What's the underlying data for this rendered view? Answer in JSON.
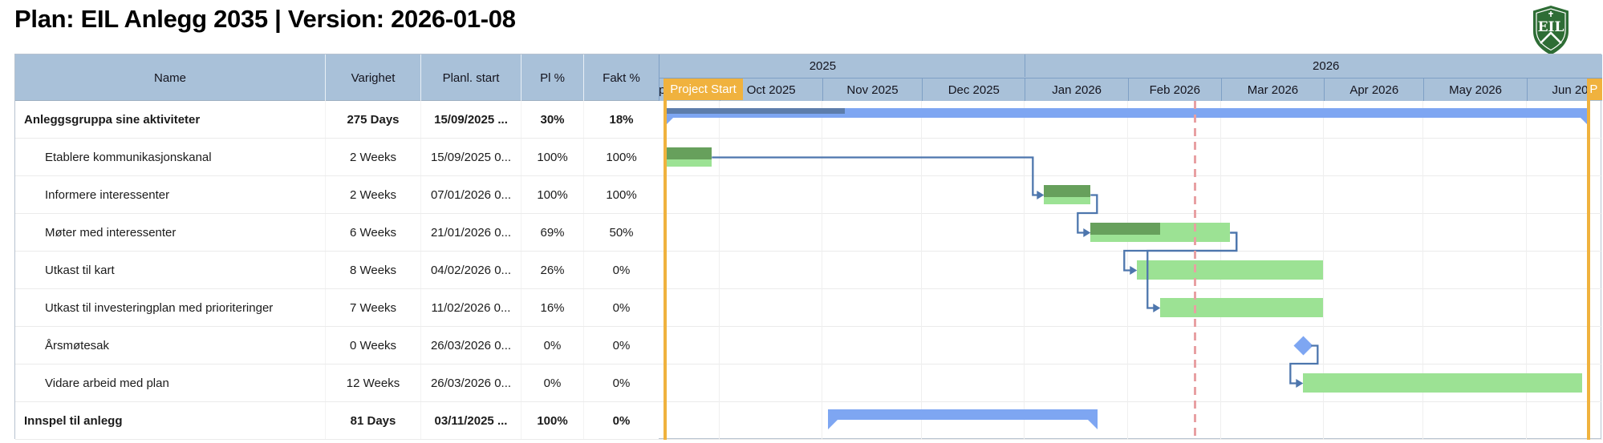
{
  "title": "Plan: EIL Anlegg 2035 | Version: 2026-01-08",
  "logo": {
    "monogram": "EIL",
    "shield_color": "#2e6d35"
  },
  "table": {
    "headers": {
      "name": "Name",
      "duration": "Varighet",
      "start": "Planl. start",
      "pl": "Pl %",
      "fakt": "Fakt %"
    },
    "rows": [
      {
        "name": "Anleggsgruppa sine aktiviteter",
        "duration": "275 Days",
        "start": "15/09/2025 ...",
        "pl": "30%",
        "fakt": "18%",
        "bold": true,
        "indent": 0
      },
      {
        "name": "Etablere kommunikasjonskanal",
        "duration": "2 Weeks",
        "start": "15/09/2025 0...",
        "pl": "100%",
        "fakt": "100%",
        "bold": false,
        "indent": 1
      },
      {
        "name": "Informere interessenter",
        "duration": "2 Weeks",
        "start": "07/01/2026 0...",
        "pl": "100%",
        "fakt": "100%",
        "bold": false,
        "indent": 1
      },
      {
        "name": "Møter med interessenter",
        "duration": "6 Weeks",
        "start": "21/01/2026 0...",
        "pl": "69%",
        "fakt": "50%",
        "bold": false,
        "indent": 1
      },
      {
        "name": "Utkast til kart",
        "duration": "8 Weeks",
        "start": "04/02/2026 0...",
        "pl": "26%",
        "fakt": "0%",
        "bold": false,
        "indent": 1
      },
      {
        "name": "Utkast til investeringplan med prioriteringer",
        "duration": "7 Weeks",
        "start": "11/02/2026 0...",
        "pl": "16%",
        "fakt": "0%",
        "bold": false,
        "indent": 1
      },
      {
        "name": "Årsmøtesak",
        "duration": "0 Weeks",
        "start": "26/03/2026 0...",
        "pl": "0%",
        "fakt": "0%",
        "bold": false,
        "indent": 1
      },
      {
        "name": "Vidare arbeid med plan",
        "duration": "12 Weeks",
        "start": "26/03/2026 0...",
        "pl": "0%",
        "fakt": "0%",
        "bold": false,
        "indent": 1
      },
      {
        "name": "Innspel til anlegg",
        "duration": "81 Days",
        "start": "03/11/2025 ...",
        "pl": "100%",
        "fakt": "0%",
        "bold": true,
        "indent": 0
      }
    ]
  },
  "chart_data": {
    "type": "gantt",
    "timeline": {
      "start": "2025-09-13",
      "end": "2026-06-24"
    },
    "years": [
      {
        "label": "2025",
        "from": "2025-09-01",
        "to": "2026-01-01"
      },
      {
        "label": "2026",
        "from": "2026-01-01",
        "to": "2026-07-01"
      }
    ],
    "months": [
      {
        "label": "Sep 2025",
        "from": "2025-09-01"
      },
      {
        "label": "Oct 2025",
        "from": "2025-10-01"
      },
      {
        "label": "Nov 2025",
        "from": "2025-11-01"
      },
      {
        "label": "Dec 2025",
        "from": "2025-12-01"
      },
      {
        "label": "Jan 2026",
        "from": "2026-01-01"
      },
      {
        "label": "Feb 2026",
        "from": "2026-02-01"
      },
      {
        "label": "Mar 2026",
        "from": "2026-03-01"
      },
      {
        "label": "Apr 2026",
        "from": "2026-04-01"
      },
      {
        "label": "May 2026",
        "from": "2026-05-01"
      },
      {
        "label": "Jun 2026",
        "from": "2026-06-01",
        "to": "2026-07-01"
      }
    ],
    "markers": {
      "project_start": {
        "label": "Project Start",
        "date": "2025-09-15"
      },
      "project_finish": {
        "label": "P",
        "date": "2026-06-20"
      },
      "status_date": "2026-02-21"
    },
    "tasks": [
      {
        "row": 0,
        "type": "summary",
        "start": "2025-09-15",
        "end": "2026-06-20",
        "actual_end": "2025-11-08"
      },
      {
        "row": 1,
        "type": "task",
        "start": "2025-09-15",
        "end": "2025-09-29",
        "progress": 1
      },
      {
        "row": 2,
        "type": "task",
        "start": "2026-01-07",
        "end": "2026-01-21",
        "progress": 1
      },
      {
        "row": 3,
        "type": "task",
        "start": "2026-01-21",
        "end": "2026-03-04",
        "progress": 0.5
      },
      {
        "row": 4,
        "type": "task",
        "start": "2026-02-04",
        "end": "2026-04-01",
        "progress": 0
      },
      {
        "row": 5,
        "type": "task",
        "start": "2026-02-11",
        "end": "2026-04-01",
        "progress": 0
      },
      {
        "row": 6,
        "type": "milestone",
        "start": "2026-03-26"
      },
      {
        "row": 7,
        "type": "task",
        "start": "2026-03-26",
        "end": "2026-06-18",
        "progress": 0
      },
      {
        "row": 8,
        "type": "summary",
        "start": "2025-11-03",
        "end": "2026-01-23"
      }
    ],
    "links": [
      {
        "from": 1,
        "to": 2
      },
      {
        "from": 2,
        "to": 3
      },
      {
        "from": 3,
        "to": 4
      },
      {
        "from": 3,
        "to": 5
      },
      {
        "from": 6,
        "to": 7
      }
    ],
    "colors": {
      "accent_orange": "#f0b23e",
      "task_green": "#9ce294",
      "progress_green": "#67a05c",
      "summary_blue": "#7ea6f2",
      "summary_progress_blue": "#5d7dab",
      "connector_blue": "#4d76ad",
      "status_line_pink": "#e8a0a3",
      "header_blue": "#a9c1d9",
      "milestone_blue": "#7ea6f2"
    }
  }
}
